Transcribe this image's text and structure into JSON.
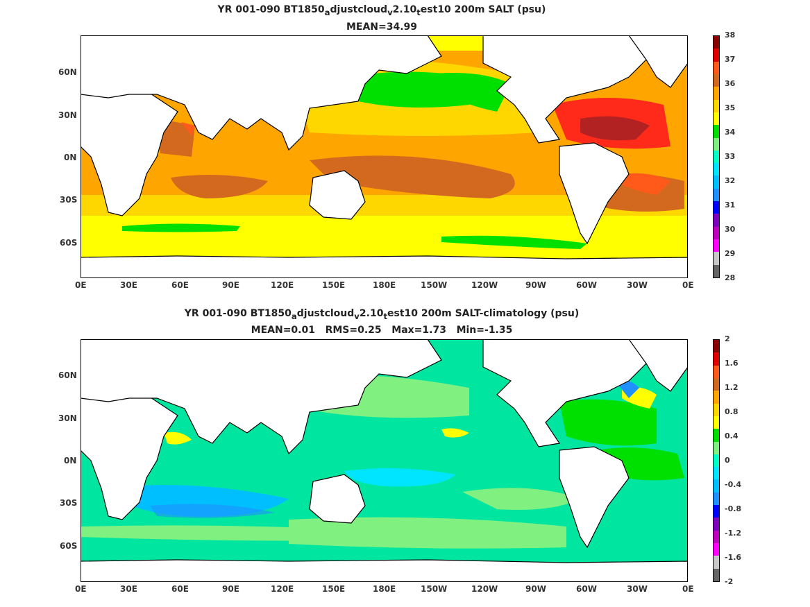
{
  "panels": [
    {
      "title_parts": [
        "YR 001-090 BT1850",
        "a",
        "djustcloud",
        "v",
        "2.10",
        "t",
        "est10 200m SALT (psu)"
      ],
      "subtitle": "MEAN=34.99",
      "x_ticks": [
        "0E",
        "30E",
        "60E",
        "90E",
        "120E",
        "150E",
        "180E",
        "150W",
        "120W",
        "90W",
        "60W",
        "30W",
        "0E"
      ],
      "y_ticks": [
        "60N",
        "30N",
        "0N",
        "30S",
        "60S"
      ],
      "colorbar_labels": [
        "38",
        "37",
        "36",
        "35",
        "34",
        "33",
        "32",
        "31",
        "30",
        "29",
        "28"
      ],
      "colorbar_colors": [
        "#8b0000",
        "#e00000",
        "#ff5a1a",
        "#d2691e",
        "#ffa500",
        "#ffd700",
        "#ffff00",
        "#00e000",
        "#80f080",
        "#00ffc8",
        "#00e5ff",
        "#00bfff",
        "#1e90ff",
        "#0000ff",
        "#8000c0",
        "#c000c0",
        "#ff00ff",
        "#c8c8c8",
        "#646464"
      ]
    },
    {
      "title_parts": [
        "YR 001-090 BT1850",
        "a",
        "djustcloud",
        "v",
        "2.10",
        "t",
        "est10 200m SALT-climatology (psu)"
      ],
      "subtitle": "MEAN=0.01   RMS=0.25   Max=1.73   Min=-1.35",
      "x_ticks": [
        "0E",
        "30E",
        "60E",
        "90E",
        "120E",
        "150E",
        "180E",
        "150W",
        "120W",
        "90W",
        "60W",
        "30W",
        "0E"
      ],
      "y_ticks": [
        "60N",
        "30N",
        "0N",
        "30S",
        "60S"
      ],
      "colorbar_labels": [
        "2",
        "1.6",
        "1.2",
        "0.8",
        "0.4",
        "0",
        "-0.4",
        "-0.8",
        "-1.2",
        "-1.6",
        "-2"
      ],
      "colorbar_colors": [
        "#8b0000",
        "#e00000",
        "#ff5a1a",
        "#d2691e",
        "#ffa500",
        "#ffd700",
        "#ffff00",
        "#00e000",
        "#80f080",
        "#00ffc8",
        "#00e5ff",
        "#00bfff",
        "#1e90ff",
        "#0000ff",
        "#8000c0",
        "#c000c0",
        "#ff00ff",
        "#c8c8c8",
        "#646464"
      ]
    }
  ],
  "chart_data": [
    {
      "type": "heatmap",
      "title": "YR 001-090 BT1850_adjustcloud_v2.10_test10 200m SALT (psu)",
      "subtitle": "MEAN=34.99",
      "x_ticks": [
        "0E",
        "30E",
        "60E",
        "90E",
        "120E",
        "150E",
        "180E",
        "150W",
        "120W",
        "90W",
        "60W",
        "30W",
        "0E"
      ],
      "y_ticks": [
        "60N",
        "30N",
        "0N",
        "30S",
        "60S"
      ],
      "colorbar": {
        "min": 28,
        "max": 38,
        "ticks": [
          28,
          29,
          30,
          31,
          32,
          33,
          34,
          35,
          36,
          37,
          38
        ]
      },
      "mean": 34.99
    },
    {
      "type": "heatmap",
      "title": "YR 001-090 BT1850_adjustcloud_v2.10_test10 200m SALT-climatology (psu)",
      "subtitle": "MEAN=0.01   RMS=0.25   Max=1.73   Min=-1.35",
      "x_ticks": [
        "0E",
        "30E",
        "60E",
        "90E",
        "120E",
        "150E",
        "180E",
        "150W",
        "120W",
        "90W",
        "60W",
        "30W",
        "0E"
      ],
      "y_ticks": [
        "60N",
        "30N",
        "0N",
        "30S",
        "60S"
      ],
      "colorbar": {
        "min": -2,
        "max": 2,
        "ticks": [
          -2,
          -1.6,
          -1.2,
          -0.8,
          -0.4,
          0,
          0.4,
          0.8,
          1.2,
          1.6,
          2
        ]
      },
      "mean": 0.01,
      "rms": 0.25,
      "max": 1.73,
      "min": -1.35
    }
  ]
}
